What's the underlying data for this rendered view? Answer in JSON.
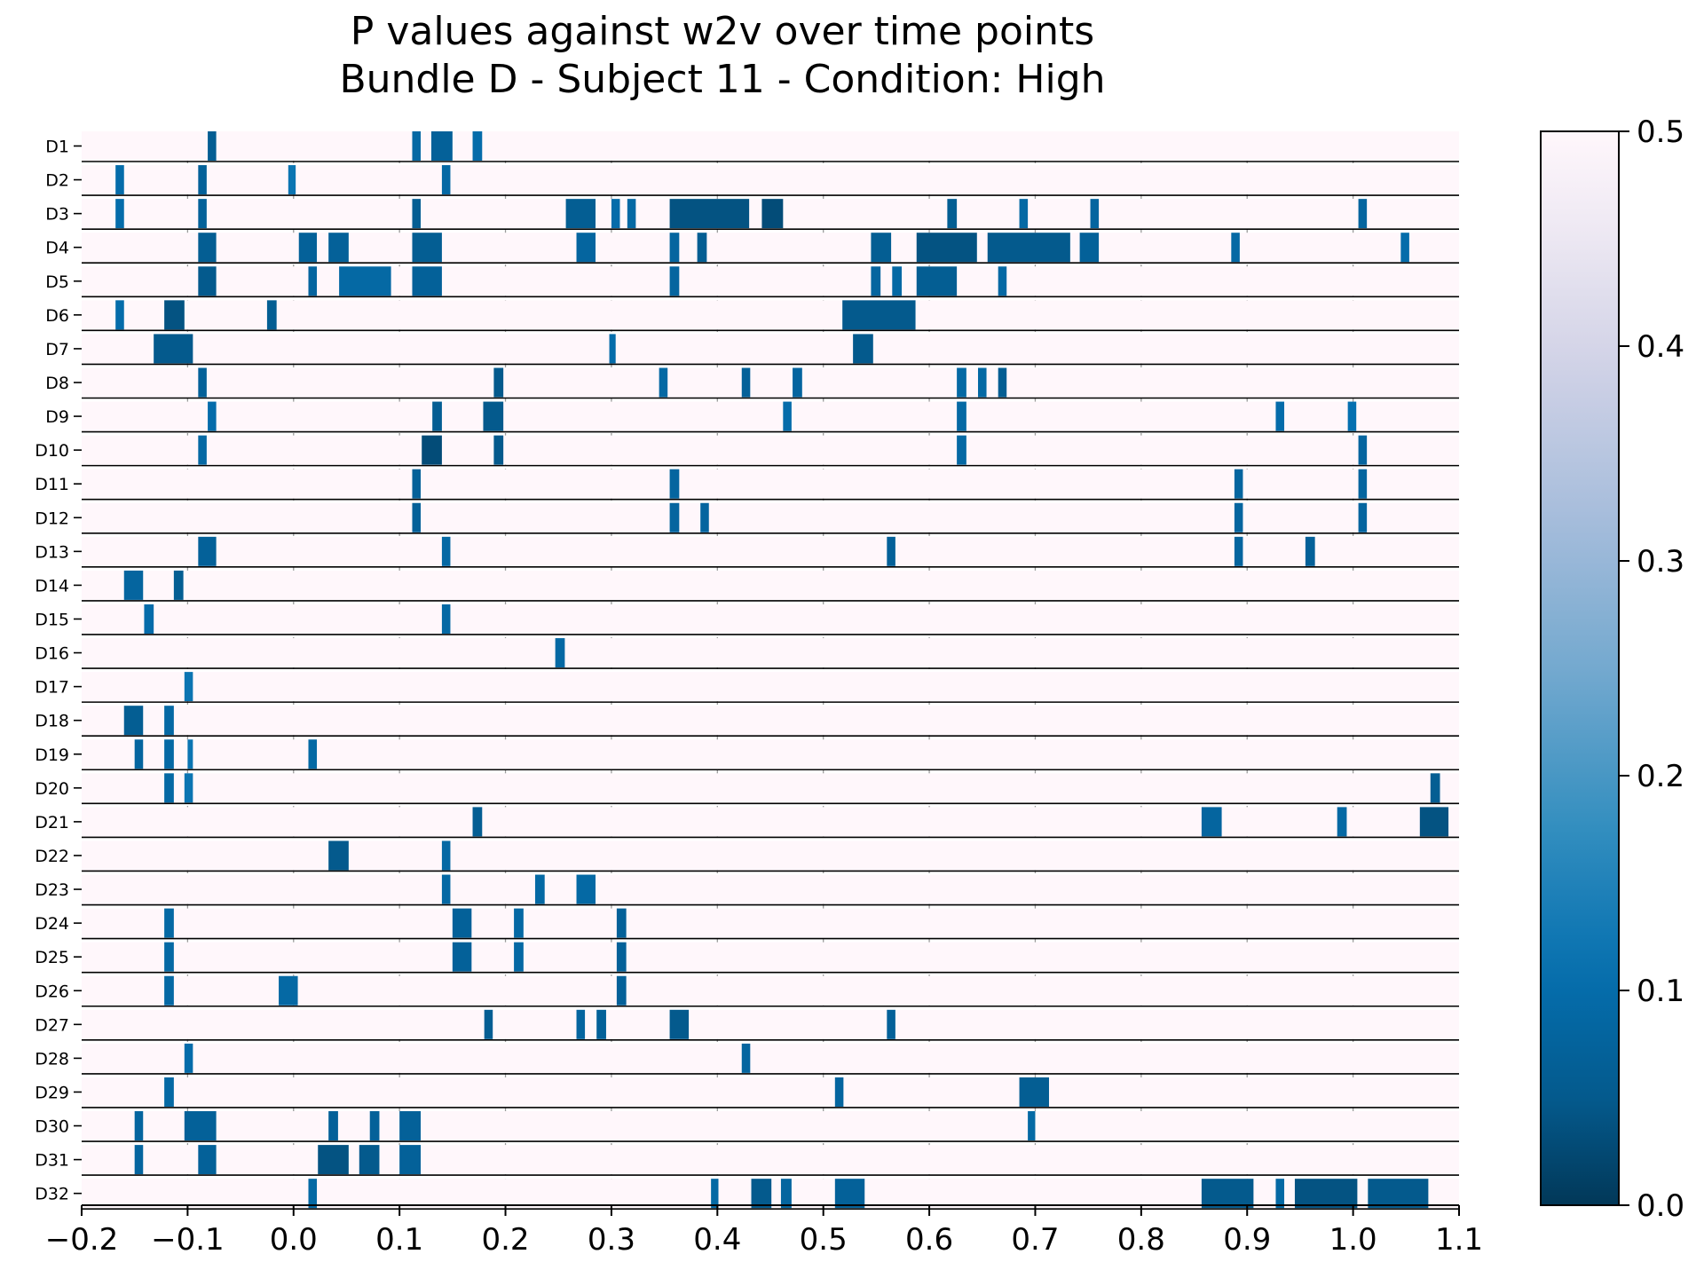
{
  "title_lines": [
    "P values against w2v over time points",
    "Bundle D - Subject 11 - Condition: High"
  ],
  "chart_data": {
    "type": "heatmap",
    "title": "P values against w2v over time points\nBundle D - Subject 11 - Condition: High",
    "x_range": [
      -0.2,
      1.1
    ],
    "x_ticks": [
      -0.2,
      -0.1,
      0.0,
      0.1,
      0.2,
      0.3,
      0.4,
      0.5,
      0.6,
      0.7,
      0.8,
      0.9,
      1.0,
      1.1
    ],
    "x_tick_labels": [
      "−0.2",
      "−0.1",
      "0.0",
      "0.1",
      "0.2",
      "0.3",
      "0.4",
      "0.5",
      "0.6",
      "0.7",
      "0.8",
      "0.9",
      "1.0",
      "1.1"
    ],
    "grid": "vertical dashed gray lines at x ticks",
    "value_range": [
      0.0,
      0.5
    ],
    "colormap": "PuBu reversed",
    "colorbar_ticks": [
      0.0,
      0.1,
      0.2,
      0.3,
      0.4,
      0.5
    ],
    "colorbar_tick_labels": [
      "0.0",
      "0.1",
      "0.2",
      "0.3",
      "0.4",
      "0.5"
    ],
    "background_value": 0.5,
    "rows": [
      {
        "label": "D1",
        "segments": [
          [
            -0.081,
            -0.073,
            0.06
          ],
          [
            0.112,
            0.12,
            0.09
          ],
          [
            0.13,
            0.15,
            0.07
          ],
          [
            0.169,
            0.178,
            0.1
          ]
        ]
      },
      {
        "label": "D2",
        "segments": [
          [
            -0.168,
            -0.16,
            0.1
          ],
          [
            -0.09,
            -0.082,
            0.07
          ],
          [
            -0.005,
            0.002,
            0.12
          ],
          [
            0.14,
            0.148,
            0.09
          ]
        ]
      },
      {
        "label": "D3",
        "segments": [
          [
            -0.168,
            -0.16,
            0.1
          ],
          [
            -0.09,
            -0.082,
            0.07
          ],
          [
            0.112,
            0.12,
            0.06
          ],
          [
            0.257,
            0.285,
            0.06
          ],
          [
            0.3,
            0.308,
            0.1
          ],
          [
            0.315,
            0.323,
            0.09
          ],
          [
            0.355,
            0.43,
            0.04
          ],
          [
            0.442,
            0.462,
            0.03
          ],
          [
            0.617,
            0.626,
            0.06
          ],
          [
            0.685,
            0.693,
            0.09
          ],
          [
            0.752,
            0.76,
            0.08
          ],
          [
            1.005,
            1.013,
            0.08
          ]
        ]
      },
      {
        "label": "D4",
        "segments": [
          [
            -0.09,
            -0.073,
            0.06
          ],
          [
            0.005,
            0.022,
            0.07
          ],
          [
            0.033,
            0.052,
            0.07
          ],
          [
            0.112,
            0.14,
            0.06
          ],
          [
            0.267,
            0.285,
            0.08
          ],
          [
            0.355,
            0.364,
            0.08
          ],
          [
            0.381,
            0.39,
            0.06
          ],
          [
            0.545,
            0.564,
            0.06
          ],
          [
            0.588,
            0.645,
            0.04
          ],
          [
            0.655,
            0.733,
            0.05
          ],
          [
            0.742,
            0.76,
            0.07
          ],
          [
            0.885,
            0.893,
            0.09
          ],
          [
            1.045,
            1.053,
            0.1
          ]
        ]
      },
      {
        "label": "D5",
        "segments": [
          [
            -0.09,
            -0.073,
            0.05
          ],
          [
            0.014,
            0.022,
            0.08
          ],
          [
            0.043,
            0.092,
            0.09
          ],
          [
            0.112,
            0.14,
            0.07
          ],
          [
            0.355,
            0.364,
            0.08
          ],
          [
            0.545,
            0.554,
            0.08
          ],
          [
            0.565,
            0.574,
            0.09
          ],
          [
            0.588,
            0.626,
            0.06
          ],
          [
            0.665,
            0.673,
            0.09
          ]
        ]
      },
      {
        "label": "D6",
        "segments": [
          [
            -0.168,
            -0.16,
            0.1
          ],
          [
            -0.122,
            -0.103,
            0.04
          ],
          [
            -0.025,
            -0.016,
            0.06
          ],
          [
            0.518,
            0.587,
            0.05
          ]
        ]
      },
      {
        "label": "D7",
        "segments": [
          [
            -0.132,
            -0.095,
            0.05
          ],
          [
            0.298,
            0.304,
            0.1
          ],
          [
            0.528,
            0.547,
            0.05
          ]
        ]
      },
      {
        "label": "D8",
        "segments": [
          [
            -0.09,
            -0.082,
            0.07
          ],
          [
            0.189,
            0.198,
            0.05
          ],
          [
            0.345,
            0.353,
            0.09
          ],
          [
            0.423,
            0.431,
            0.07
          ],
          [
            0.471,
            0.48,
            0.08
          ],
          [
            0.626,
            0.635,
            0.09
          ],
          [
            0.646,
            0.654,
            0.09
          ],
          [
            0.665,
            0.673,
            0.06
          ]
        ]
      },
      {
        "label": "D9",
        "segments": [
          [
            -0.081,
            -0.073,
            0.1
          ],
          [
            0.131,
            0.14,
            0.06
          ],
          [
            0.179,
            0.198,
            0.05
          ],
          [
            0.462,
            0.47,
            0.1
          ],
          [
            0.626,
            0.635,
            0.09
          ],
          [
            0.927,
            0.935,
            0.1
          ],
          [
            0.995,
            1.003,
            0.11
          ]
        ]
      },
      {
        "label": "D10",
        "segments": [
          [
            -0.09,
            -0.082,
            0.09
          ],
          [
            0.121,
            0.14,
            0.03
          ],
          [
            0.189,
            0.198,
            0.05
          ],
          [
            0.626,
            0.635,
            0.09
          ],
          [
            1.005,
            1.013,
            0.08
          ]
        ]
      },
      {
        "label": "D11",
        "segments": [
          [
            0.112,
            0.12,
            0.07
          ],
          [
            0.355,
            0.364,
            0.08
          ],
          [
            0.888,
            0.896,
            0.08
          ],
          [
            1.005,
            1.013,
            0.08
          ]
        ]
      },
      {
        "label": "D12",
        "segments": [
          [
            0.112,
            0.12,
            0.07
          ],
          [
            0.355,
            0.364,
            0.08
          ],
          [
            0.384,
            0.392,
            0.08
          ],
          [
            0.888,
            0.896,
            0.08
          ],
          [
            1.005,
            1.013,
            0.08
          ]
        ]
      },
      {
        "label": "D13",
        "segments": [
          [
            -0.09,
            -0.073,
            0.07
          ],
          [
            0.14,
            0.148,
            0.09
          ],
          [
            0.56,
            0.568,
            0.07
          ],
          [
            0.888,
            0.896,
            0.08
          ],
          [
            0.955,
            0.964,
            0.07
          ]
        ]
      },
      {
        "label": "D14",
        "segments": [
          [
            -0.16,
            -0.142,
            0.08
          ],
          [
            -0.113,
            -0.104,
            0.06
          ]
        ]
      },
      {
        "label": "D15",
        "segments": [
          [
            -0.141,
            -0.132,
            0.1
          ],
          [
            0.14,
            0.148,
            0.09
          ]
        ]
      },
      {
        "label": "D16",
        "segments": [
          [
            0.247,
            0.256,
            0.09
          ]
        ]
      },
      {
        "label": "D17",
        "segments": [
          [
            -0.103,
            -0.095,
            0.12
          ]
        ]
      },
      {
        "label": "D18",
        "segments": [
          [
            -0.16,
            -0.142,
            0.06
          ],
          [
            -0.122,
            -0.113,
            0.09
          ]
        ]
      },
      {
        "label": "D19",
        "segments": [
          [
            -0.15,
            -0.142,
            0.08
          ],
          [
            -0.122,
            -0.113,
            0.09
          ],
          [
            -0.1,
            -0.095,
            0.12
          ],
          [
            0.014,
            0.022,
            0.09
          ]
        ]
      },
      {
        "label": "D20",
        "segments": [
          [
            -0.122,
            -0.113,
            0.09
          ],
          [
            -0.103,
            -0.095,
            0.12
          ],
          [
            1.073,
            1.082,
            0.06
          ]
        ]
      },
      {
        "label": "D21",
        "segments": [
          [
            0.169,
            0.178,
            0.06
          ],
          [
            0.857,
            0.876,
            0.08
          ],
          [
            0.985,
            0.994,
            0.09
          ],
          [
            1.063,
            1.09,
            0.04
          ]
        ]
      },
      {
        "label": "D22",
        "segments": [
          [
            0.033,
            0.052,
            0.05
          ],
          [
            0.14,
            0.148,
            0.09
          ]
        ]
      },
      {
        "label": "D23",
        "segments": [
          [
            0.14,
            0.148,
            0.09
          ],
          [
            0.228,
            0.237,
            0.09
          ],
          [
            0.267,
            0.285,
            0.09
          ]
        ]
      },
      {
        "label": "D24",
        "segments": [
          [
            -0.122,
            -0.113,
            0.09
          ],
          [
            0.15,
            0.168,
            0.07
          ],
          [
            0.208,
            0.217,
            0.09
          ],
          [
            0.305,
            0.314,
            0.07
          ]
        ]
      },
      {
        "label": "D25",
        "segments": [
          [
            -0.122,
            -0.113,
            0.09
          ],
          [
            0.15,
            0.168,
            0.07
          ],
          [
            0.208,
            0.217,
            0.09
          ],
          [
            0.305,
            0.314,
            0.07
          ]
        ]
      },
      {
        "label": "D26",
        "segments": [
          [
            -0.122,
            -0.113,
            0.09
          ],
          [
            -0.014,
            0.004,
            0.09
          ],
          [
            0.305,
            0.314,
            0.07
          ]
        ]
      },
      {
        "label": "D27",
        "segments": [
          [
            0.18,
            0.188,
            0.06
          ],
          [
            0.267,
            0.275,
            0.08
          ],
          [
            0.286,
            0.295,
            0.07
          ],
          [
            0.355,
            0.373,
            0.05
          ],
          [
            0.56,
            0.568,
            0.07
          ]
        ]
      },
      {
        "label": "D28",
        "segments": [
          [
            -0.103,
            -0.095,
            0.1
          ],
          [
            0.423,
            0.431,
            0.08
          ]
        ]
      },
      {
        "label": "D29",
        "segments": [
          [
            -0.122,
            -0.113,
            0.09
          ],
          [
            0.511,
            0.519,
            0.08
          ],
          [
            0.685,
            0.713,
            0.06
          ]
        ]
      },
      {
        "label": "D30",
        "segments": [
          [
            -0.15,
            -0.142,
            0.08
          ],
          [
            -0.103,
            -0.073,
            0.07
          ],
          [
            0.033,
            0.042,
            0.07
          ],
          [
            0.072,
            0.081,
            0.07
          ],
          [
            0.1,
            0.12,
            0.07
          ],
          [
            0.693,
            0.7,
            0.09
          ]
        ]
      },
      {
        "label": "D31",
        "segments": [
          [
            -0.15,
            -0.142,
            0.08
          ],
          [
            -0.09,
            -0.073,
            0.07
          ],
          [
            0.023,
            0.052,
            0.04
          ],
          [
            0.062,
            0.081,
            0.05
          ],
          [
            0.1,
            0.12,
            0.07
          ]
        ]
      },
      {
        "label": "D32",
        "segments": [
          [
            0.014,
            0.022,
            0.09
          ],
          [
            0.394,
            0.401,
            0.09
          ],
          [
            0.432,
            0.451,
            0.05
          ],
          [
            0.46,
            0.47,
            0.08
          ],
          [
            0.511,
            0.539,
            0.07
          ],
          [
            0.857,
            0.906,
            0.05
          ],
          [
            0.927,
            0.935,
            0.09
          ],
          [
            0.945,
            1.004,
            0.04
          ],
          [
            1.014,
            1.071,
            0.05
          ]
        ]
      }
    ]
  }
}
